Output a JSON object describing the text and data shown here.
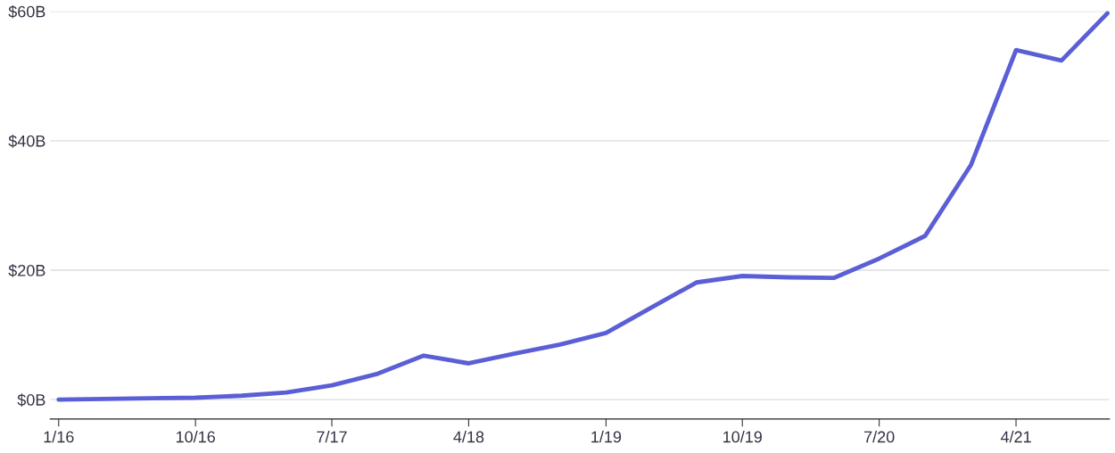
{
  "chart_data": {
    "type": "line",
    "x": [
      "2016-01",
      "2016-04",
      "2016-07",
      "2016-10",
      "2017-01",
      "2017-04",
      "2017-07",
      "2017-10",
      "2018-01",
      "2018-04",
      "2018-07",
      "2018-10",
      "2019-01",
      "2019-04",
      "2019-07",
      "2019-10",
      "2020-01",
      "2020-04",
      "2020-07",
      "2020-10",
      "2021-01",
      "2021-04",
      "2021-07",
      "2021-10"
    ],
    "series": [
      {
        "color": "#5b5fd6",
        "values": [
          0,
          0.1,
          0.2,
          0.3,
          0.6,
          1.1,
          2.2,
          4.0,
          6.8,
          5.6,
          7.1,
          8.5,
          10.3,
          14.2,
          18.1,
          19.1,
          18.9,
          18.8,
          21.8,
          25.3,
          36.3,
          54.0,
          52.4,
          59.7
        ]
      }
    ],
    "xlim": [
      "2015-12-15",
      "2021-10-05"
    ],
    "xticks": [
      {
        "value": "2016-01",
        "label": "1/16"
      },
      {
        "value": "2016-10",
        "label": "10/16"
      },
      {
        "value": "2017-07",
        "label": "7/17"
      },
      {
        "value": "2018-04",
        "label": "4/18"
      },
      {
        "value": "2019-01",
        "label": "1/19"
      },
      {
        "value": "2019-10",
        "label": "10/19"
      },
      {
        "value": "2020-07",
        "label": "7/20"
      },
      {
        "value": "2021-04",
        "label": "4/21"
      }
    ],
    "ylim": [
      -3,
      60
    ],
    "yticks": [
      {
        "value": 0,
        "label": "$0B"
      },
      {
        "value": 20,
        "label": "$20B"
      },
      {
        "value": 40,
        "label": "$40B"
      },
      {
        "value": 60,
        "label": "$60B"
      }
    ],
    "grid": "y",
    "marker": "none",
    "line_style": "solid",
    "legend": false
  }
}
